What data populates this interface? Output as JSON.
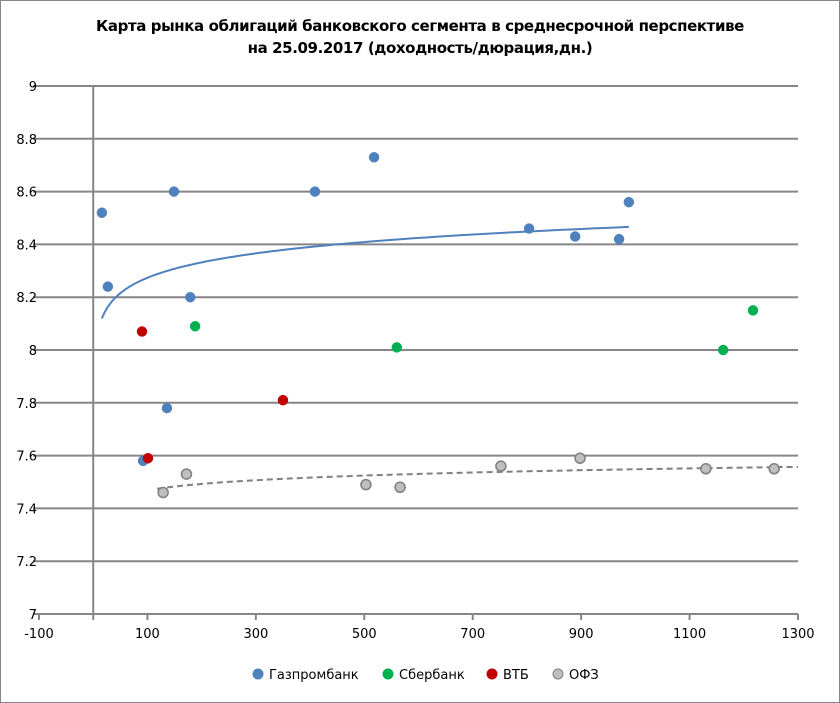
{
  "chart_data": {
    "type": "scatter",
    "title": "Карта рынка облигаций банковского сегмента в среднесрочной перспективе",
    "subtitle": "на 25.09.2017  (доходность/дюрация,дн.)",
    "xlabel": "",
    "ylabel": "",
    "xlim": [
      -100,
      1300
    ],
    "ylim": [
      7,
      9
    ],
    "x_ticks": [
      "-100",
      "100",
      "300",
      "500",
      "700",
      "900",
      "1100",
      "1300"
    ],
    "y_ticks": [
      "7",
      "7.2",
      "7.4",
      "7.6",
      "7.8",
      "8",
      "8.2",
      "8.4",
      "8.6",
      "8.8",
      "9"
    ],
    "grid": true,
    "legend_position": "bottom",
    "series": [
      {
        "name": "Газпромбанк",
        "color": "#4F81BD",
        "points": [
          [
            16,
            8.52
          ],
          [
            27,
            8.24
          ],
          [
            149,
            8.6
          ],
          [
            179,
            8.2
          ],
          [
            409,
            8.6
          ],
          [
            518,
            8.73
          ],
          [
            804,
            8.46
          ],
          [
            889,
            8.43
          ],
          [
            970,
            8.42
          ],
          [
            988,
            8.56
          ],
          [
            136,
            7.78
          ],
          [
            92,
            7.58
          ]
        ],
        "trendline": {
          "type": "logarithmic",
          "style": "solid",
          "x_range": [
            16,
            988
          ]
        }
      },
      {
        "name": "Сбербанк",
        "color": "#00B050",
        "points": [
          [
            188,
            8.09
          ],
          [
            560,
            8.01
          ],
          [
            1162,
            8.0
          ],
          [
            1217,
            8.15
          ]
        ]
      },
      {
        "name": "ВТБ",
        "color": "#C00000",
        "points": [
          [
            90,
            8.07
          ],
          [
            101,
            7.59
          ],
          [
            350,
            7.81
          ]
        ]
      },
      {
        "name": "ОФЗ",
        "color": "#BFBFBF",
        "points": [
          [
            129,
            7.46
          ],
          [
            172,
            7.53
          ],
          [
            503,
            7.49
          ],
          [
            566,
            7.48
          ],
          [
            752,
            7.56
          ],
          [
            898,
            7.59
          ],
          [
            1130,
            7.55
          ],
          [
            1256,
            7.55
          ]
        ],
        "trendline": {
          "type": "logarithmic",
          "style": "dashed",
          "x_range": [
            118,
            1300
          ]
        }
      }
    ]
  }
}
